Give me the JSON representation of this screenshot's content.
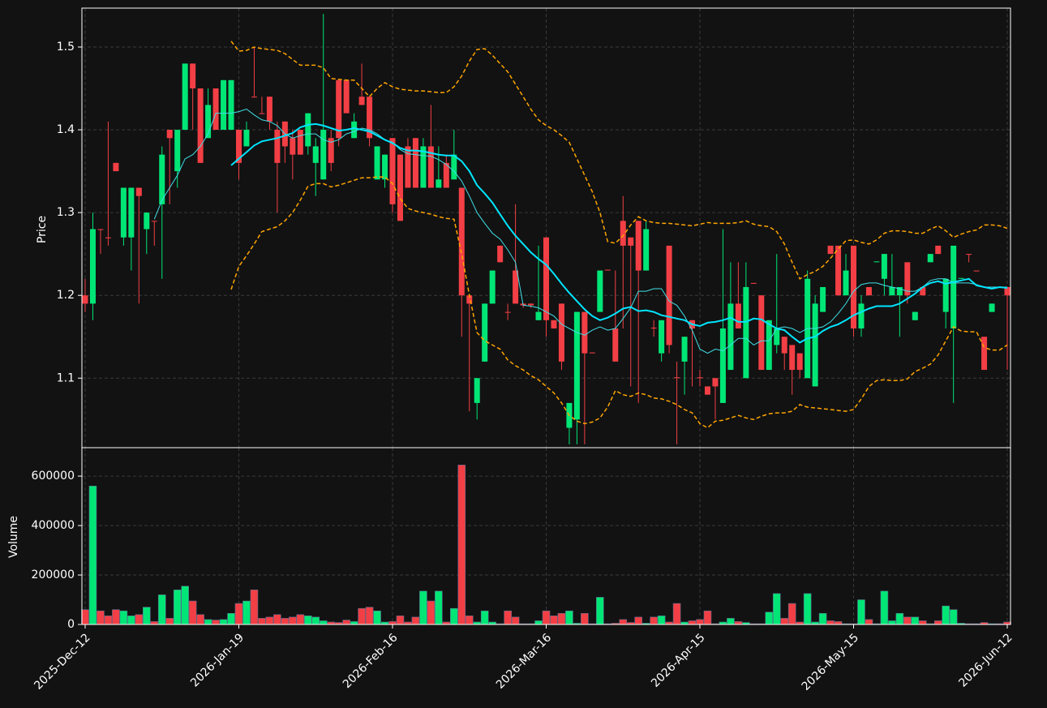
{
  "chart_data": {
    "type": "candlestick",
    "ylabel": "Price",
    "volume_label": "Volume",
    "ylim": [
      1.016,
      1.547
    ],
    "yticks": [
      1.1,
      1.2,
      1.3,
      1.4,
      1.5
    ],
    "volume_ylim": [
      0,
      715000
    ],
    "volume_yticks": [
      0,
      200000,
      400000,
      600000
    ],
    "grid": true,
    "up_color": "#00e676",
    "down_color": "#f23f45",
    "categories": [
      "2025-Dec-12",
      null,
      null,
      null,
      null,
      null,
      null,
      null,
      null,
      null,
      null,
      null,
      null,
      null,
      null,
      null,
      null,
      null,
      null,
      null,
      "2026-Jan-19",
      null,
      null,
      null,
      null,
      null,
      null,
      null,
      null,
      null,
      null,
      null,
      null,
      null,
      null,
      null,
      null,
      null,
      null,
      null,
      "2026-Feb-16",
      null,
      null,
      null,
      null,
      null,
      null,
      null,
      null,
      null,
      null,
      null,
      null,
      null,
      null,
      null,
      null,
      null,
      null,
      null,
      "2026-Mar-16",
      null,
      null,
      null,
      null,
      null,
      null,
      null,
      null,
      null,
      null,
      null,
      null,
      null,
      null,
      null,
      null,
      null,
      null,
      null,
      "2026-Apr-15",
      null,
      null,
      null,
      null,
      null,
      null,
      null,
      null,
      null,
      null,
      null,
      null,
      null,
      null,
      null,
      null,
      null,
      null,
      null,
      "2026-May-15",
      null,
      null,
      null,
      null,
      null,
      null,
      null,
      null,
      null,
      null,
      null,
      null,
      null,
      null,
      null,
      null,
      null,
      null,
      null,
      "2026-Jun-12"
    ],
    "open": [
      1.2,
      1.19,
      1.28,
      1.27,
      1.36,
      1.27,
      1.27,
      1.33,
      1.28,
      1.29,
      1.31,
      1.4,
      1.35,
      1.4,
      1.48,
      1.45,
      1.39,
      1.45,
      1.4,
      1.4,
      1.4,
      1.38,
      1.44,
      1.42,
      1.44,
      1.4,
      1.41,
      1.39,
      1.4,
      1.38,
      1.36,
      1.34,
      1.39,
      1.46,
      1.46,
      1.39,
      1.44,
      1.44,
      1.34,
      1.34,
      1.39,
      1.37,
      1.38,
      1.39,
      1.33,
      1.38,
      1.33,
      1.36,
      1.34,
      1.33,
      1.2,
      1.07,
      1.12,
      1.19,
      1.26,
      1.18,
      1.23,
      1.19,
      1.19,
      1.17,
      1.27,
      1.17,
      1.19,
      1.04,
      1.05,
      1.18,
      1.131,
      1.18,
      1.231,
      1.16,
      1.29,
      1.27,
      1.29,
      1.23,
      1.161,
      1.13,
      1.26,
      1.101,
      1.12,
      1.17,
      1.101,
      1.09,
      1.1,
      1.07,
      1.11,
      1.19,
      1.1,
      1.215,
      1.2,
      1.11,
      1.14,
      1.15,
      1.14,
      1.13,
      1.1,
      1.09,
      1.18,
      1.26,
      1.26,
      1.2,
      1.26,
      1.16,
      1.21,
      1.24,
      1.22,
      1.2,
      1.2,
      1.24,
      1.17,
      1.21,
      1.24,
      1.26,
      1.18,
      1.16,
      1.22,
      1.25,
      1.23,
      1.15,
      1.18,
      1.21,
      1.21
    ],
    "high": [
      1.22,
      1.3,
      1.28,
      1.41,
      1.36,
      1.33,
      1.33,
      1.33,
      1.3,
      1.29,
      1.38,
      1.4,
      1.4,
      1.48,
      1.48,
      1.45,
      1.45,
      1.45,
      1.46,
      1.46,
      1.4,
      1.41,
      1.5,
      1.44,
      1.44,
      1.41,
      1.41,
      1.4,
      1.4,
      1.42,
      1.39,
      1.54,
      1.4,
      1.46,
      1.46,
      1.42,
      1.48,
      1.44,
      1.38,
      1.37,
      1.39,
      1.37,
      1.39,
      1.39,
      1.39,
      1.43,
      1.38,
      1.37,
      1.4,
      1.33,
      1.2,
      1.1,
      1.19,
      1.23,
      1.26,
      1.19,
      1.31,
      1.19,
      1.19,
      1.26,
      1.27,
      1.17,
      1.19,
      1.07,
      1.18,
      1.18,
      1.131,
      1.23,
      1.231,
      1.23,
      1.32,
      1.27,
      1.29,
      1.29,
      1.17,
      1.17,
      1.26,
      1.12,
      1.15,
      1.17,
      1.11,
      1.09,
      1.1,
      1.28,
      1.24,
      1.24,
      1.24,
      1.215,
      1.2,
      1.17,
      1.25,
      1.15,
      1.14,
      1.13,
      1.23,
      1.2,
      1.21,
      1.26,
      1.26,
      1.25,
      1.26,
      1.2,
      1.21,
      1.241,
      1.25,
      1.25,
      1.21,
      1.24,
      1.18,
      1.21,
      1.25,
      1.26,
      1.22,
      1.26,
      1.221,
      1.25,
      1.23,
      1.15,
      1.19,
      1.21,
      1.21
    ],
    "low": [
      1.18,
      1.17,
      1.25,
      1.26,
      1.35,
      1.26,
      1.23,
      1.19,
      1.25,
      1.26,
      1.22,
      1.31,
      1.33,
      1.4,
      1.4,
      1.36,
      1.39,
      1.4,
      1.4,
      1.4,
      1.34,
      1.38,
      1.44,
      1.42,
      1.4,
      1.3,
      1.36,
      1.34,
      1.37,
      1.37,
      1.32,
      1.34,
      1.35,
      1.38,
      1.42,
      1.39,
      1.43,
      1.38,
      1.34,
      1.33,
      1.3,
      1.29,
      1.33,
      1.33,
      1.33,
      1.33,
      1.33,
      1.33,
      1.34,
      1.15,
      1.06,
      1.05,
      1.12,
      1.19,
      1.24,
      1.17,
      1.19,
      1.185,
      1.185,
      1.17,
      1.15,
      1.16,
      1.11,
      1.02,
      1.02,
      1.02,
      1.13,
      1.18,
      1.23,
      1.12,
      1.16,
      1.09,
      1.07,
      1.23,
      1.15,
      1.12,
      1.13,
      1.02,
      1.08,
      1.09,
      1.09,
      1.08,
      1.05,
      1.07,
      1.11,
      1.16,
      1.1,
      1.214,
      1.11,
      1.11,
      1.13,
      1.11,
      1.08,
      1.1,
      1.1,
      1.09,
      1.18,
      1.25,
      1.2,
      1.2,
      1.15,
      1.15,
      1.2,
      1.24,
      1.2,
      1.2,
      1.15,
      1.19,
      1.17,
      1.2,
      1.24,
      1.25,
      1.16,
      1.07,
      1.22,
      1.24,
      1.23,
      1.11,
      1.18,
      1.21,
      1.11
    ],
    "close": [
      1.19,
      1.28,
      1.279,
      1.269,
      1.35,
      1.33,
      1.33,
      1.32,
      1.3,
      1.289,
      1.37,
      1.39,
      1.4,
      1.48,
      1.45,
      1.36,
      1.43,
      1.4,
      1.46,
      1.46,
      1.36,
      1.4,
      1.439,
      1.419,
      1.41,
      1.36,
      1.38,
      1.37,
      1.37,
      1.42,
      1.38,
      1.4,
      1.36,
      1.39,
      1.42,
      1.41,
      1.43,
      1.39,
      1.38,
      1.37,
      1.31,
      1.29,
      1.33,
      1.33,
      1.38,
      1.33,
      1.34,
      1.33,
      1.37,
      1.2,
      1.19,
      1.1,
      1.19,
      1.23,
      1.24,
      1.179,
      1.19,
      1.188,
      1.188,
      1.18,
      1.17,
      1.16,
      1.12,
      1.07,
      1.18,
      1.13,
      1.13,
      1.23,
      1.23,
      1.12,
      1.26,
      1.26,
      1.23,
      1.28,
      1.16,
      1.17,
      1.14,
      1.1,
      1.15,
      1.16,
      1.1,
      1.08,
      1.09,
      1.16,
      1.19,
      1.16,
      1.21,
      1.214,
      1.11,
      1.17,
      1.16,
      1.13,
      1.11,
      1.11,
      1.22,
      1.19,
      1.21,
      1.25,
      1.2,
      1.23,
      1.16,
      1.19,
      1.2,
      1.241,
      1.25,
      1.21,
      1.21,
      1.2,
      1.18,
      1.2,
      1.25,
      1.25,
      1.22,
      1.26,
      1.221,
      1.249,
      1.229,
      1.11,
      1.19,
      1.209,
      1.2
    ],
    "volume": [
      60000,
      560000,
      55000,
      35000,
      60000,
      55000,
      35000,
      40000,
      70000,
      12000,
      120000,
      25000,
      140000,
      155000,
      95000,
      40000,
      20000,
      18000,
      20000,
      45000,
      85000,
      95000,
      140000,
      25000,
      30000,
      40000,
      25000,
      30000,
      40000,
      35000,
      30000,
      15000,
      10000,
      8000,
      18000,
      12000,
      65000,
      70000,
      55000,
      10000,
      12000,
      35000,
      10000,
      30000,
      135000,
      95000,
      135000,
      10000,
      65000,
      645000,
      35000,
      10000,
      55000,
      10000,
      3000,
      55000,
      30000,
      3000,
      3000,
      15000,
      55000,
      35000,
      45000,
      55000,
      5000,
      45000,
      3000,
      110000,
      3000,
      5000,
      20000,
      8000,
      30000,
      5000,
      30000,
      35000,
      10000,
      85000,
      10000,
      15000,
      20000,
      55000,
      3000,
      10000,
      25000,
      12000,
      8000,
      3000,
      3000,
      50000,
      125000,
      25000,
      85000,
      10000,
      125000,
      10000,
      45000,
      15000,
      12000,
      3000,
      3000,
      100000,
      20000,
      3000,
      135000,
      15000,
      45000,
      30000,
      30000,
      15000,
      3000,
      15000,
      75000,
      60000,
      5000,
      3000,
      3000,
      8000,
      3000,
      3000,
      10000
    ],
    "overlays": [
      {
        "color": "#40e0e8",
        "width": 1,
        "dashed": false,
        "values": [
          null,
          null,
          null,
          null,
          null,
          null,
          null,
          null,
          null,
          1.292,
          1.315,
          1.33,
          1.345,
          1.365,
          1.37,
          1.38,
          1.395,
          1.42,
          1.42,
          1.42,
          1.422,
          1.425,
          1.418,
          1.412,
          1.41,
          1.405,
          1.395,
          1.39,
          1.393,
          1.395,
          1.395,
          1.388,
          1.385,
          1.388,
          1.395,
          1.398,
          1.402,
          1.4,
          1.395,
          1.388,
          1.385,
          1.376,
          1.371,
          1.37,
          1.369,
          1.368,
          1.364,
          1.358,
          1.35,
          1.338,
          1.32,
          1.3,
          1.287,
          1.275,
          1.268,
          1.255,
          1.24,
          1.188,
          1.187,
          1.185,
          1.18,
          1.175,
          1.165,
          1.16,
          1.155,
          1.152,
          1.158,
          1.162,
          1.158,
          1.16,
          1.172,
          1.185,
          1.205,
          1.205,
          1.208,
          1.208,
          1.193,
          1.188,
          1.175,
          1.158,
          1.135,
          1.13,
          1.135,
          1.133,
          1.14,
          1.148,
          1.148,
          1.14,
          1.145,
          1.145,
          1.16,
          1.162,
          1.16,
          1.155,
          1.16,
          1.16,
          1.162,
          1.168,
          1.178,
          1.19,
          1.205,
          1.213,
          1.215,
          1.215,
          1.212,
          1.21,
          1.208,
          1.205,
          1.205,
          1.21,
          1.218,
          1.22,
          1.22,
          1.215,
          1.215,
          1.215,
          1.213,
          1.21,
          1.21,
          1.21,
          1.21
        ]
      },
      {
        "color": "#00e5ff",
        "width": 2,
        "dashed": false,
        "values": [
          null,
          null,
          null,
          null,
          null,
          null,
          null,
          null,
          null,
          null,
          null,
          null,
          null,
          null,
          null,
          null,
          null,
          null,
          null,
          1.357,
          1.365,
          1.373,
          1.381,
          1.386,
          1.388,
          1.39,
          1.393,
          1.396,
          1.403,
          1.406,
          1.407,
          1.405,
          1.402,
          1.399,
          1.4,
          1.402,
          1.4,
          1.398,
          1.393,
          1.388,
          1.384,
          1.378,
          1.375,
          1.375,
          1.374,
          1.372,
          1.37,
          1.369,
          1.369,
          1.362,
          1.35,
          1.333,
          1.323,
          1.312,
          1.298,
          1.284,
          1.272,
          1.262,
          1.252,
          1.244,
          1.237,
          1.226,
          1.214,
          1.203,
          1.193,
          1.183,
          1.175,
          1.17,
          1.173,
          1.178,
          1.184,
          1.186,
          1.181,
          1.182,
          1.18,
          1.176,
          1.174,
          1.172,
          1.17,
          1.165,
          1.163,
          1.167,
          1.168,
          1.17,
          1.173,
          1.168,
          1.168,
          1.172,
          1.171,
          1.165,
          1.16,
          1.158,
          1.15,
          1.143,
          1.148,
          1.15,
          1.157,
          1.162,
          1.165,
          1.17,
          1.176,
          1.18,
          1.184,
          1.187,
          1.187,
          1.187,
          1.19,
          1.196,
          1.202,
          1.21,
          1.215,
          1.217,
          1.214,
          1.216,
          1.218,
          1.22,
          1.212,
          1.21,
          1.208,
          1.21,
          1.209
        ]
      },
      {
        "color": "#ffa500",
        "width": 1.5,
        "dashed": true,
        "values": [
          null,
          null,
          null,
          null,
          null,
          null,
          null,
          null,
          null,
          null,
          null,
          null,
          null,
          null,
          null,
          null,
          null,
          null,
          null,
          1.507,
          1.495,
          1.496,
          1.5,
          1.498,
          1.497,
          1.496,
          1.492,
          1.485,
          1.478,
          1.478,
          1.478,
          1.475,
          1.462,
          1.461,
          1.46,
          1.46,
          1.45,
          1.44,
          1.45,
          1.457,
          1.452,
          1.449,
          1.448,
          1.447,
          1.447,
          1.446,
          1.445,
          1.445,
          1.452,
          1.465,
          1.483,
          1.497,
          1.498,
          1.49,
          1.48,
          1.47,
          1.455,
          1.44,
          1.425,
          1.412,
          1.405,
          1.4,
          1.393,
          1.385,
          1.365,
          1.345,
          1.325,
          1.3,
          1.265,
          1.263,
          1.272,
          1.285,
          1.295,
          1.29,
          1.288,
          1.287,
          1.287,
          1.286,
          1.285,
          1.284,
          1.286,
          1.288,
          1.287,
          1.287,
          1.287,
          1.288,
          1.29,
          1.286,
          1.284,
          1.283,
          1.277,
          1.262,
          1.24,
          1.22,
          1.225,
          1.229,
          1.235,
          1.245,
          1.256,
          1.266,
          1.267,
          1.264,
          1.262,
          1.267,
          1.275,
          1.278,
          1.278,
          1.277,
          1.275,
          1.275,
          1.28,
          1.284,
          1.278,
          1.27,
          1.274,
          1.277,
          1.279,
          1.285,
          1.285,
          1.284,
          1.281
        ]
      },
      {
        "color": "#ffa500",
        "width": 1.5,
        "dashed": true,
        "values": [
          null,
          null,
          null,
          null,
          null,
          null,
          null,
          null,
          null,
          null,
          null,
          null,
          null,
          null,
          null,
          null,
          null,
          null,
          null,
          1.207,
          1.235,
          1.248,
          1.262,
          1.277,
          1.28,
          1.283,
          1.29,
          1.3,
          1.315,
          1.332,
          1.335,
          1.335,
          1.331,
          1.333,
          1.336,
          1.339,
          1.342,
          1.342,
          1.343,
          1.343,
          1.335,
          1.317,
          1.305,
          1.302,
          1.3,
          1.298,
          1.295,
          1.293,
          1.292,
          1.25,
          1.2,
          1.155,
          1.145,
          1.14,
          1.135,
          1.122,
          1.115,
          1.11,
          1.103,
          1.098,
          1.09,
          1.082,
          1.07,
          1.055,
          1.048,
          1.045,
          1.047,
          1.052,
          1.065,
          1.085,
          1.08,
          1.078,
          1.082,
          1.08,
          1.076,
          1.075,
          1.072,
          1.068,
          1.062,
          1.058,
          1.045,
          1.04,
          1.048,
          1.049,
          1.052,
          1.055,
          1.052,
          1.05,
          1.054,
          1.057,
          1.058,
          1.058,
          1.06,
          1.068,
          1.065,
          1.064,
          1.063,
          1.062,
          1.061,
          1.06,
          1.062,
          1.075,
          1.09,
          1.097,
          1.098,
          1.097,
          1.097,
          1.099,
          1.108,
          1.112,
          1.117,
          1.128,
          1.145,
          1.162,
          1.157,
          1.156,
          1.156,
          1.137,
          1.134,
          1.134,
          1.14
        ]
      }
    ]
  }
}
